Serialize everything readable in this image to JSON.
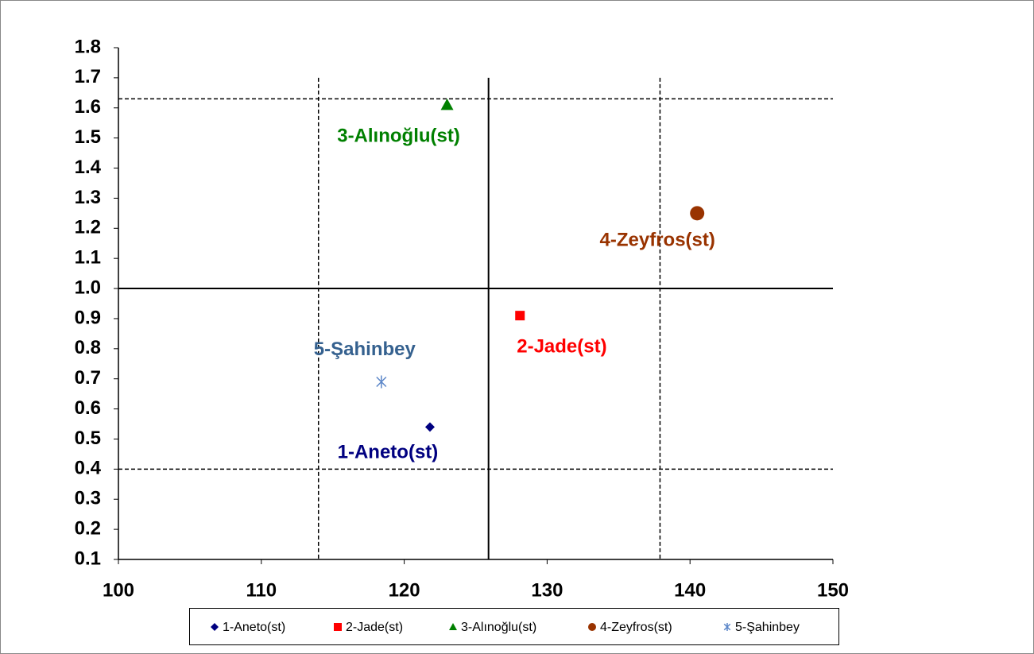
{
  "chart_data": {
    "type": "scatter",
    "xlim": [
      100,
      150
    ],
    "xticks": [
      100,
      110,
      120,
      130,
      140,
      150
    ],
    "ylim": [
      0.1,
      1.8
    ],
    "yticks": [
      0.1,
      0.2,
      0.3,
      0.4,
      0.5,
      0.6,
      0.7,
      0.8,
      0.9,
      {
        "value": 1,
        "label": "1.0"
      },
      1.1,
      1.2,
      1.3,
      1.4,
      1.5,
      1.6,
      1.7,
      1.8
    ],
    "series": [
      {
        "name": "1-Aneto(st)",
        "color": "#000080",
        "marker": "diamond",
        "x": [
          121.8
        ],
        "values": [
          0.54
        ]
      },
      {
        "name": "2-Jade(st)",
        "color": "#ff0000",
        "marker": "square",
        "x": [
          128.1
        ],
        "values": [
          0.91
        ]
      },
      {
        "name": "3-Alınoğlu(st)",
        "color": "#008000",
        "marker": "triangle",
        "x": [
          123
        ],
        "values": [
          1.61
        ]
      },
      {
        "name": "4-Zeyfros(st)",
        "color": "#993300",
        "marker": "circle",
        "x": [
          140.5
        ],
        "values": [
          1.25
        ]
      },
      {
        "name": "5-Şahinbey",
        "color": "#5b86c8",
        "marker": "star",
        "x": [
          118.4
        ],
        "values": [
          0.69
        ]
      }
    ],
    "reference_lines": [
      {
        "axis": "x",
        "value": 125.9,
        "style": "solid"
      },
      {
        "axis": "y",
        "value": 1,
        "style": "solid"
      },
      {
        "axis": "x",
        "value": 114,
        "style": "dashed"
      },
      {
        "axis": "x",
        "value": 137.9,
        "style": "dashed"
      },
      {
        "axis": "y",
        "value": 1.63,
        "style": "dashed"
      },
      {
        "axis": "y",
        "value": 0.4,
        "style": "dashed"
      }
    ],
    "legend": "bottom"
  }
}
